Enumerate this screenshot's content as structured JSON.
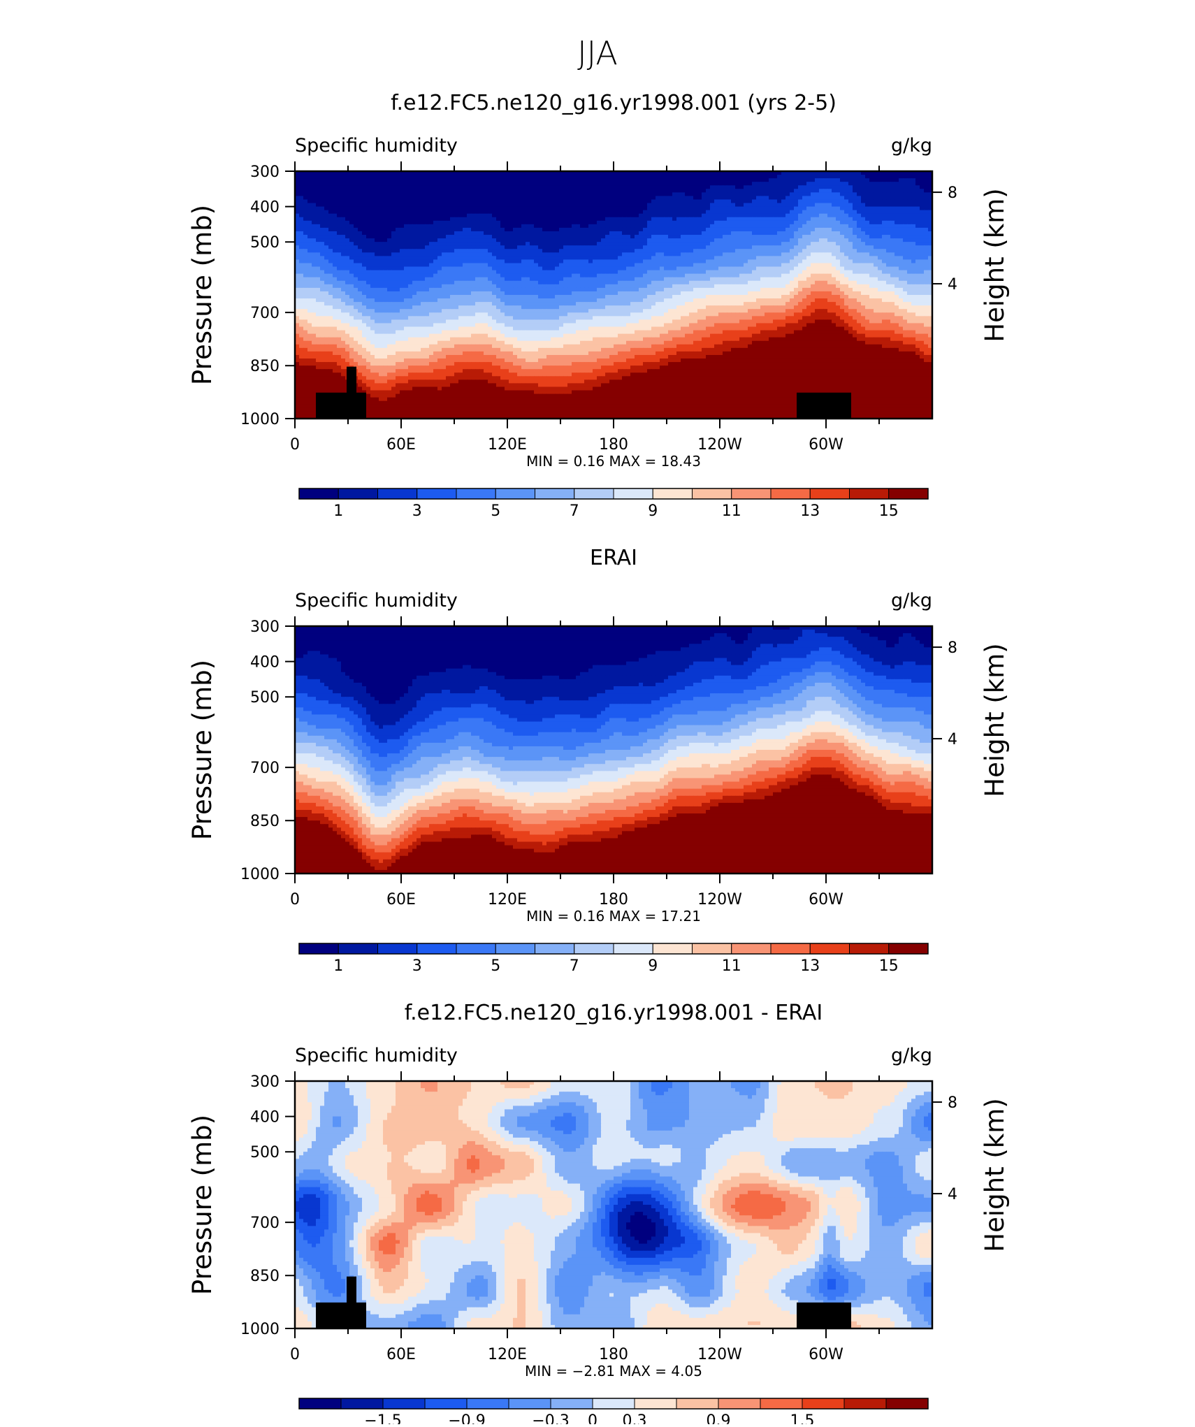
{
  "figure_title": "JJA",
  "chart_data": [
    {
      "type": "heatmap",
      "title": "f.e12.FC5.ne120_g16.yr1998.001 (yrs 2-5)",
      "variable": "Specific humidity",
      "units": "g/kg",
      "ylabel": "Pressure (mb)",
      "y2label": "Height (km)",
      "pressure_ticks": [
        "300",
        "400",
        "500",
        "700",
        "850",
        "1000"
      ],
      "height_ticks": [
        "8",
        "4"
      ],
      "lon_ticks": [
        "0",
        "60E",
        "120E",
        "180",
        "120W",
        "60W"
      ],
      "min_label": "MIN =",
      "min": "0.16",
      "max_label": "MAX =",
      "max": "18.43",
      "levels": [
        1,
        2,
        3,
        4,
        5,
        6,
        7,
        8,
        9,
        10,
        11,
        12,
        13,
        14,
        15
      ],
      "colorbar_labels": [
        "1",
        "3",
        "5",
        "7",
        "9",
        "11",
        "13",
        "15"
      ],
      "palette": [
        "#00007f",
        "#0018a0",
        "#0837d0",
        "#1d5bf0",
        "#3a78f6",
        "#5b94f7",
        "#85b0f7",
        "#b3cdf7",
        "#dbe8fa",
        "#fde5d3",
        "#fbc2a4",
        "#f89475",
        "#f56a45",
        "#e8401a",
        "#b81b06",
        "#850000"
      ],
      "terrain": true
    },
    {
      "type": "heatmap",
      "title": "ERAI",
      "variable": "Specific humidity",
      "units": "g/kg",
      "ylabel": "Pressure (mb)",
      "y2label": "Height (km)",
      "pressure_ticks": [
        "300",
        "400",
        "500",
        "700",
        "850",
        "1000"
      ],
      "height_ticks": [
        "8",
        "4"
      ],
      "lon_ticks": [
        "0",
        "60E",
        "120E",
        "180",
        "120W",
        "60W"
      ],
      "min_label": "MIN =",
      "min": "0.16",
      "max_label": "MAX =",
      "max": "17.21",
      "levels": [
        1,
        2,
        3,
        4,
        5,
        6,
        7,
        8,
        9,
        10,
        11,
        12,
        13,
        14,
        15
      ],
      "colorbar_labels": [
        "1",
        "3",
        "5",
        "7",
        "9",
        "11",
        "13",
        "15"
      ],
      "palette": [
        "#00007f",
        "#0018a0",
        "#0837d0",
        "#1d5bf0",
        "#3a78f6",
        "#5b94f7",
        "#85b0f7",
        "#b3cdf7",
        "#dbe8fa",
        "#fde5d3",
        "#fbc2a4",
        "#f89475",
        "#f56a45",
        "#e8401a",
        "#b81b06",
        "#850000"
      ],
      "terrain": false
    },
    {
      "type": "heatmap",
      "title": "f.e12.FC5.ne120_g16.yr1998.001 - ERAI",
      "variable": "Specific humidity",
      "units": "g/kg",
      "ylabel": "Pressure (mb)",
      "y2label": "Height (km)",
      "pressure_ticks": [
        "300",
        "400",
        "500",
        "700",
        "850",
        "1000"
      ],
      "height_ticks": [
        "8",
        "4"
      ],
      "lon_ticks": [
        "0",
        "60E",
        "120E",
        "180",
        "120W",
        "60W"
      ],
      "min_label": "MIN =",
      "min": "−2.81",
      "max_label": "MAX =",
      "max": "4.05",
      "levels": [
        -1.8,
        -1.5,
        -1.2,
        -0.9,
        -0.6,
        -0.3,
        0,
        0.3,
        0.6,
        0.9,
        1.2,
        1.5,
        1.8
      ],
      "colorbar_labels": [
        "−1.5",
        "−0.9",
        "−0.3",
        "0",
        "0.3",
        "0.9",
        "1.5"
      ],
      "palette": [
        "#00007f",
        "#0018a0",
        "#0837d0",
        "#1d5bf0",
        "#3a78f6",
        "#5b94f7",
        "#85b0f7",
        "#dbe8fa",
        "#fde5d3",
        "#fbc2a4",
        "#f89475",
        "#f56a45",
        "#e8401a",
        "#b81b06",
        "#850000"
      ],
      "terrain": true
    }
  ]
}
